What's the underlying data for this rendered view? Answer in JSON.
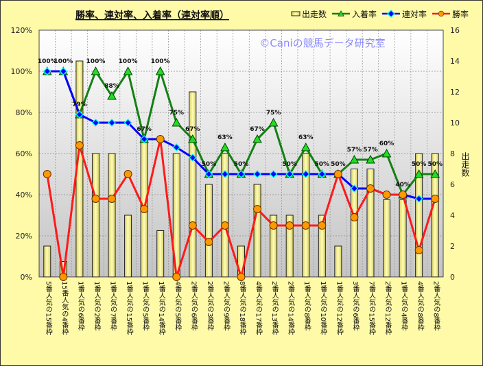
{
  "chart_data": {
    "type": "bar+line",
    "title": "勝率、連対率、入着率（連対率順）",
    "watermark": "©Caniの競馬データ研究室",
    "y_left": {
      "min": 0,
      "max": 120,
      "step": 20,
      "suffix": "%",
      "ticks": [
        "0%",
        "20%",
        "40%",
        "60%",
        "80%",
        "100%",
        "120%"
      ]
    },
    "y_right": {
      "min": 0,
      "max": 16,
      "step": 2,
      "label": "出走数",
      "ticks": [
        "0",
        "2",
        "4",
        "6",
        "8",
        "10",
        "12",
        "14",
        "16"
      ]
    },
    "grid": true,
    "legend_position": "top-right",
    "categories": [
      "5番人気の15番枠",
      "15番人気の4番枠",
      "1番人気の6番枠",
      "1番人気の2番枠",
      "1番人気の7番枠",
      "1番人気の15番枠",
      "1番人気の5番枠",
      "1番人気の14番枠",
      "4番人気の5番枠",
      "2番人気の6番枠",
      "2番人気の3番枠",
      "2番人気の9番枠",
      "8番人気の18番枠",
      "4番人気の17番枠",
      "2番人気の13番枠",
      "2番人気の14番枠",
      "1番人気の8番枠",
      "1番人気の10番枠",
      "1番人気の12番枠",
      "3番人気の6番枠",
      "7番人気の15番枠",
      "2番人気の12番枠",
      "1番人気の4番枠",
      "4番人気の8番枠",
      "2番人気の8番枠"
    ],
    "series": [
      {
        "name": "出走数",
        "kind": "bar",
        "axis": "right",
        "color": "#f5f08a",
        "values": [
          2,
          1,
          14,
          8,
          8,
          4,
          9,
          3,
          8,
          12,
          6,
          8,
          2,
          6,
          4,
          4,
          8,
          4,
          2,
          7,
          7,
          5,
          5,
          8,
          8
        ]
      },
      {
        "name": "入着率",
        "kind": "line",
        "axis": "left",
        "color": "#138013",
        "marker": "triangle",
        "values": [
          100,
          100,
          79,
          100,
          88,
          100,
          67,
          100,
          75,
          67,
          50,
          63,
          50,
          67,
          75,
          50,
          63,
          50,
          50,
          57,
          57,
          60,
          40,
          50,
          50
        ],
        "labels": [
          "100%",
          "100%",
          "79%",
          "100%",
          "88%",
          "100%",
          "67%",
          "100%",
          "75%",
          "67%",
          "50%",
          "63%",
          "50%",
          "67%",
          "75%",
          "50%",
          "63%",
          "50%",
          "50%",
          "57%",
          "57%",
          "60%",
          "40%",
          "50%",
          "50%"
        ]
      },
      {
        "name": "連対率",
        "kind": "line",
        "axis": "left",
        "color": "#0000ff",
        "marker": "diamond",
        "values": [
          100,
          100,
          79,
          75,
          75,
          75,
          67,
          67,
          63,
          58,
          50,
          50,
          50,
          50,
          50,
          50,
          50,
          50,
          50,
          43,
          43,
          40,
          40,
          38,
          38
        ]
      },
      {
        "name": "勝率",
        "kind": "line",
        "axis": "left",
        "color": "#ff1a1a",
        "marker": "circle",
        "values": [
          50,
          0,
          64,
          38,
          38,
          50,
          33,
          67,
          0,
          25,
          17,
          25,
          0,
          33,
          25,
          25,
          25,
          25,
          50,
          29,
          43,
          40,
          40,
          13,
          38
        ]
      }
    ]
  }
}
